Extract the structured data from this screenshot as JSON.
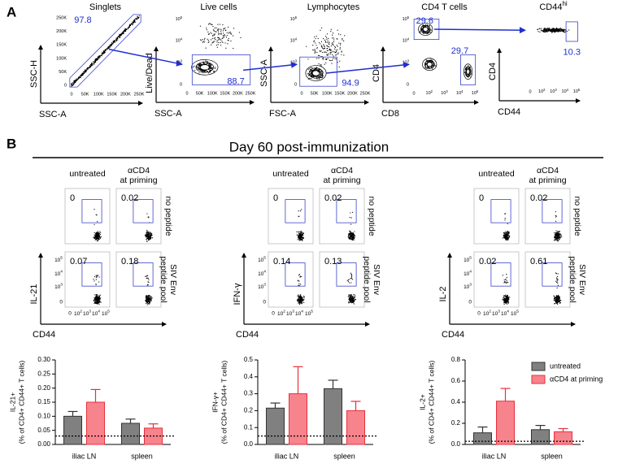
{
  "panel_a": {
    "label": "A",
    "plots": [
      {
        "title": "Singlets",
        "xlabel": "SSC-A",
        "ylabel": "SSC-H",
        "xticks": [
          "0",
          "50K",
          "100K",
          "150K",
          "200K",
          "250K"
        ],
        "yticks": [
          "0",
          "50K",
          "100K",
          "150K",
          "200K",
          "250K"
        ],
        "gates": [
          97.8
        ]
      },
      {
        "title": "Live cells",
        "xlabel": "SSC-A",
        "ylabel": "Live/Dead",
        "xticks": [
          "0",
          "50K",
          "100K",
          "150K",
          "200K",
          "250K"
        ],
        "yticks": [
          "0",
          {
            "base": "10",
            "exp": "3"
          },
          {
            "base": "10",
            "exp": "4"
          },
          {
            "base": "10",
            "exp": "5"
          }
        ],
        "gates": [
          88.7
        ]
      },
      {
        "title": "Lymphocytes",
        "xlabel": "FSC-A",
        "ylabel": "SSC-A",
        "xticks": [
          "0",
          "50K",
          "100K",
          "150K",
          "200K",
          "250K"
        ],
        "yticks": [
          "0",
          {
            "base": "10",
            "exp": "3"
          },
          {
            "base": "10",
            "exp": "4"
          },
          {
            "base": "10",
            "exp": "5"
          }
        ],
        "gates": [
          94.9
        ]
      },
      {
        "title": "CD4 T cells",
        "xlabel": "CD8",
        "ylabel": "CD4",
        "xticks": [
          "0",
          {
            "base": "10",
            "exp": "2"
          },
          {
            "base": "10",
            "exp": "3"
          },
          {
            "base": "10",
            "exp": "4"
          },
          {
            "base": "10",
            "exp": "5"
          }
        ],
        "yticks": [
          "0",
          {
            "base": "10",
            "exp": "3"
          },
          {
            "base": "10",
            "exp": "4"
          },
          {
            "base": "10",
            "exp": "5"
          }
        ],
        "gates": [
          29.6,
          29.7
        ]
      },
      {
        "title": "CD44",
        "title_sup": "hi",
        "xlabel": "CD44",
        "ylabel": "CD4",
        "xticks": [
          "0",
          {
            "base": "10",
            "exp": "2"
          },
          {
            "base": "10",
            "exp": "3"
          },
          {
            "base": "10",
            "exp": "4"
          },
          {
            "base": "10",
            "exp": "5"
          }
        ],
        "yticks": [],
        "gates": [
          10.3
        ]
      }
    ]
  },
  "panel_b": {
    "label": "B",
    "title": "Day 60 post-immunization",
    "columns": [
      [
        "untreated"
      ],
      [
        "αCD4",
        "at priming"
      ]
    ],
    "rows": [
      [
        "no peptide"
      ],
      [
        "SIV Env",
        "peptide pool"
      ]
    ],
    "groups": [
      {
        "ylabel": "IL-21",
        "xlabel": "CD44",
        "values": [
          [
            0,
            0.02
          ],
          [
            0.07,
            0.18
          ]
        ],
        "xticks": [
          "0",
          {
            "base": "10",
            "exp": "2"
          },
          {
            "base": "10",
            "exp": "3"
          },
          {
            "base": "10",
            "exp": "4"
          },
          {
            "base": "10",
            "exp": "5"
          }
        ],
        "yticks": [
          "0",
          {
            "base": "10",
            "exp": "3"
          },
          {
            "base": "10",
            "exp": "4"
          },
          {
            "base": "10",
            "exp": "5"
          }
        ]
      },
      {
        "ylabel": "IFN-γ",
        "xlabel": "CD44",
        "values": [
          [
            0,
            0.02
          ],
          [
            0.14,
            0.13
          ]
        ],
        "xticks": [
          "0",
          {
            "base": "10",
            "exp": "2"
          },
          {
            "base": "10",
            "exp": "3"
          },
          {
            "base": "10",
            "exp": "4"
          },
          {
            "base": "10",
            "exp": "5"
          }
        ],
        "yticks": [
          "0",
          {
            "base": "10",
            "exp": "3"
          },
          {
            "base": "10",
            "exp": "4"
          },
          {
            "base": "10",
            "exp": "5"
          }
        ]
      },
      {
        "ylabel": "IL-2",
        "xlabel": "CD44",
        "values": [
          [
            0,
            0.02
          ],
          [
            0.02,
            0.61
          ]
        ],
        "xticks": [
          "0",
          {
            "base": "10",
            "exp": "2"
          },
          {
            "base": "10",
            "exp": "3"
          },
          {
            "base": "10",
            "exp": "4"
          },
          {
            "base": "10",
            "exp": "5"
          }
        ],
        "yticks": [
          "0",
          {
            "base": "10",
            "exp": "3"
          },
          {
            "base": "10",
            "exp": "4"
          },
          {
            "base": "10",
            "exp": "5"
          }
        ]
      }
    ]
  },
  "chart_data": [
    {
      "type": "bar",
      "ylabel": "IL-21+",
      "ylabel2": "(% of CD4+ CD44+ T cells)",
      "categories": [
        "iliac LN",
        "spleen"
      ],
      "series": [
        {
          "color": "#808080",
          "edge": "#333333",
          "values": [
            0.1,
            0.075
          ],
          "errors": [
            0.017,
            0.015
          ]
        },
        {
          "color": "#f7838d",
          "edge": "#e8303a",
          "values": [
            0.15,
            0.058
          ],
          "errors": [
            0.045,
            0.015
          ]
        }
      ],
      "ylim": [
        0,
        0.3
      ],
      "yticks": [
        {
          "value": 0,
          "label": "0.00"
        },
        0.05,
        {
          "value": 0.1,
          "label": "0.10"
        },
        0.15,
        {
          "value": 0.2,
          "label": "0.20"
        },
        0.25,
        {
          "value": 0.3,
          "label": "0.30"
        }
      ],
      "reference_line": 0.03
    },
    {
      "type": "bar",
      "ylabel": "IFN-γ+",
      "ylabel2": "(% of CD4+ CD44+ T cells)",
      "categories": [
        "iliac LN",
        "spleen"
      ],
      "series": [
        {
          "color": "#808080",
          "edge": "#333333",
          "values": [
            0.215,
            0.33
          ],
          "errors": [
            0.03,
            0.05
          ]
        },
        {
          "color": "#f7838d",
          "edge": "#e8303a",
          "values": [
            0.3,
            0.2
          ],
          "errors": [
            0.16,
            0.055
          ]
        }
      ],
      "ylim": [
        0,
        0.5
      ],
      "yticks": [
        {
          "value": 0,
          "label": "0.0"
        },
        0.1,
        0.2,
        0.3,
        0.4,
        0.5
      ],
      "reference_line": 0.05
    },
    {
      "type": "bar",
      "ylabel": "IL-2+",
      "ylabel2": "(% of CD4+ CD44+ T cells)",
      "categories": [
        "iliac LN",
        "spleen"
      ],
      "series": [
        {
          "name": "untreated",
          "color": "#808080",
          "edge": "#333333",
          "values": [
            0.11,
            0.14
          ],
          "errors": [
            0.055,
            0.04
          ]
        },
        {
          "name": "αCD4 at priming",
          "color": "#f7838d",
          "edge": "#e8303a",
          "values": [
            0.41,
            0.12
          ],
          "errors": [
            0.12,
            0.03
          ]
        }
      ],
      "ylim": [
        0,
        0.8
      ],
      "yticks": [
        {
          "value": 0,
          "label": "0.0"
        },
        0.2,
        0.4,
        0.6,
        0.8
      ],
      "reference_line": 0.03,
      "legend": "upper right"
    }
  ]
}
